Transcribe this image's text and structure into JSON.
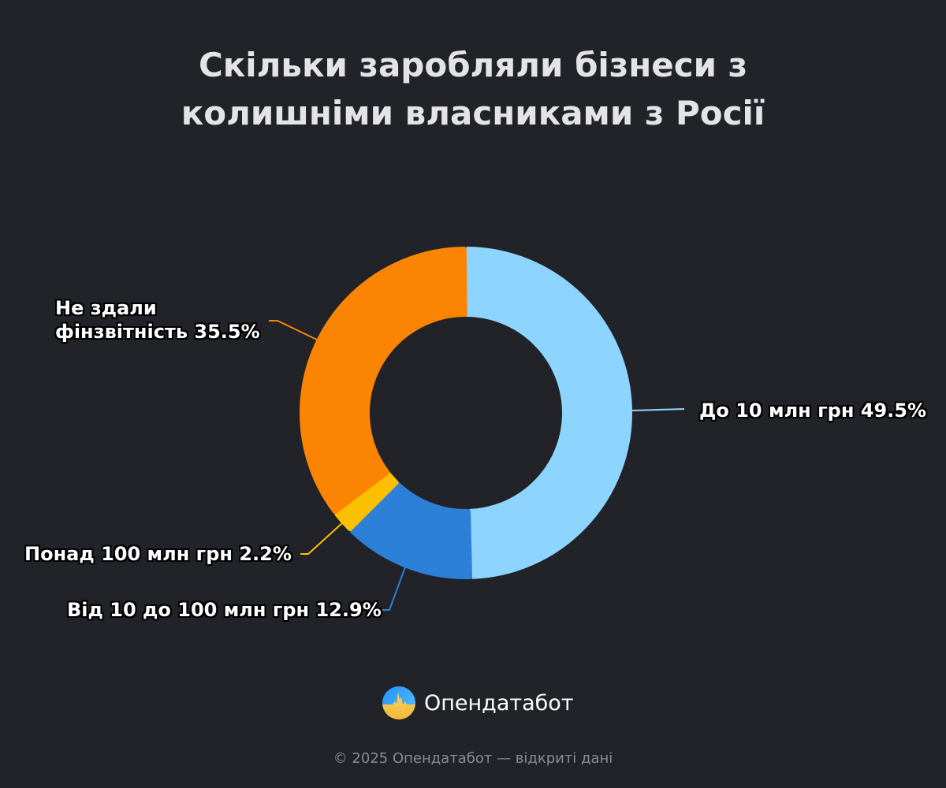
{
  "title": {
    "line1": "Скільки заробляли бізнеси з",
    "line2": "колишніми власниками з Росії"
  },
  "chart_data": {
    "type": "pie",
    "variant": "donut",
    "title": "Скільки заробляли бізнеси з колишніми власниками з Росії",
    "start_angle": "top, clockwise",
    "slices": [
      {
        "label": "До 10 млн грн",
        "value": 49.5,
        "display": "До 10 млн грн 49.5%",
        "color": "#8dd5ff"
      },
      {
        "label": "Від 10 до 100 млн грн",
        "value": 12.9,
        "display": "Від 10 до 100 млн грн 12.9%",
        "color": "#2d80d8"
      },
      {
        "label": "Понад 100 млн грн",
        "value": 2.2,
        "display": "Понад 100 млн грн 2.2%",
        "color": "#fcc003"
      },
      {
        "label": "Не здали фінзвітність",
        "value": 35.5,
        "display_line1": "Не здали",
        "display_line2": "фінзвітність 35.5%",
        "color": "#fb8503"
      }
    ],
    "legend": "none (inline labels with leader lines)"
  },
  "brand": {
    "name": "Опендатабот",
    "logo_icon": "opendatabot-logo-icon"
  },
  "footer": {
    "text": "© 2025 Опендатабот — відкриті дані"
  }
}
